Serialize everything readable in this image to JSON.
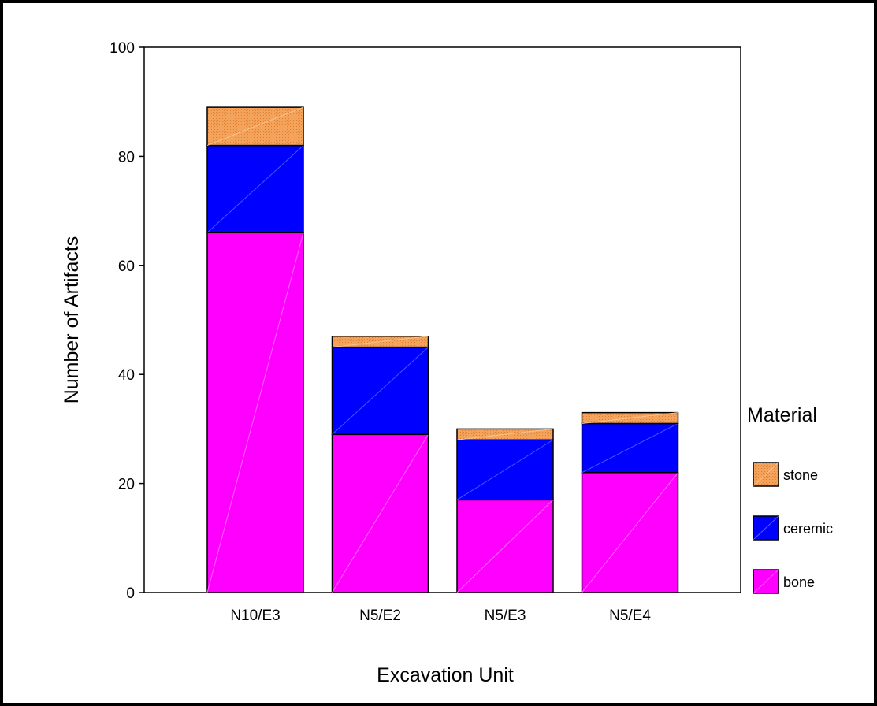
{
  "chart_data": {
    "type": "bar",
    "stacked": true,
    "xlabel": "Excavation Unit",
    "ylabel": "Number of Artifacts",
    "ylim": [
      0,
      100
    ],
    "yticks": [
      0,
      20,
      40,
      60,
      80,
      100
    ],
    "categories": [
      "N10/E3",
      "N5/E2",
      "N5/E3",
      "N5/E4"
    ],
    "series": [
      {
        "name": "bone",
        "color": "#ff00ff",
        "values": [
          66,
          29,
          17,
          22
        ]
      },
      {
        "name": "ceremic",
        "color": "#0000ff",
        "values": [
          16,
          16,
          11,
          9
        ]
      },
      {
        "name": "stone",
        "color": "#f4a35c",
        "values": [
          7,
          2,
          2,
          2
        ]
      }
    ],
    "legend": {
      "title": "Material",
      "placement": "right",
      "order": [
        "stone",
        "ceremic",
        "bone"
      ]
    },
    "grid": false
  }
}
